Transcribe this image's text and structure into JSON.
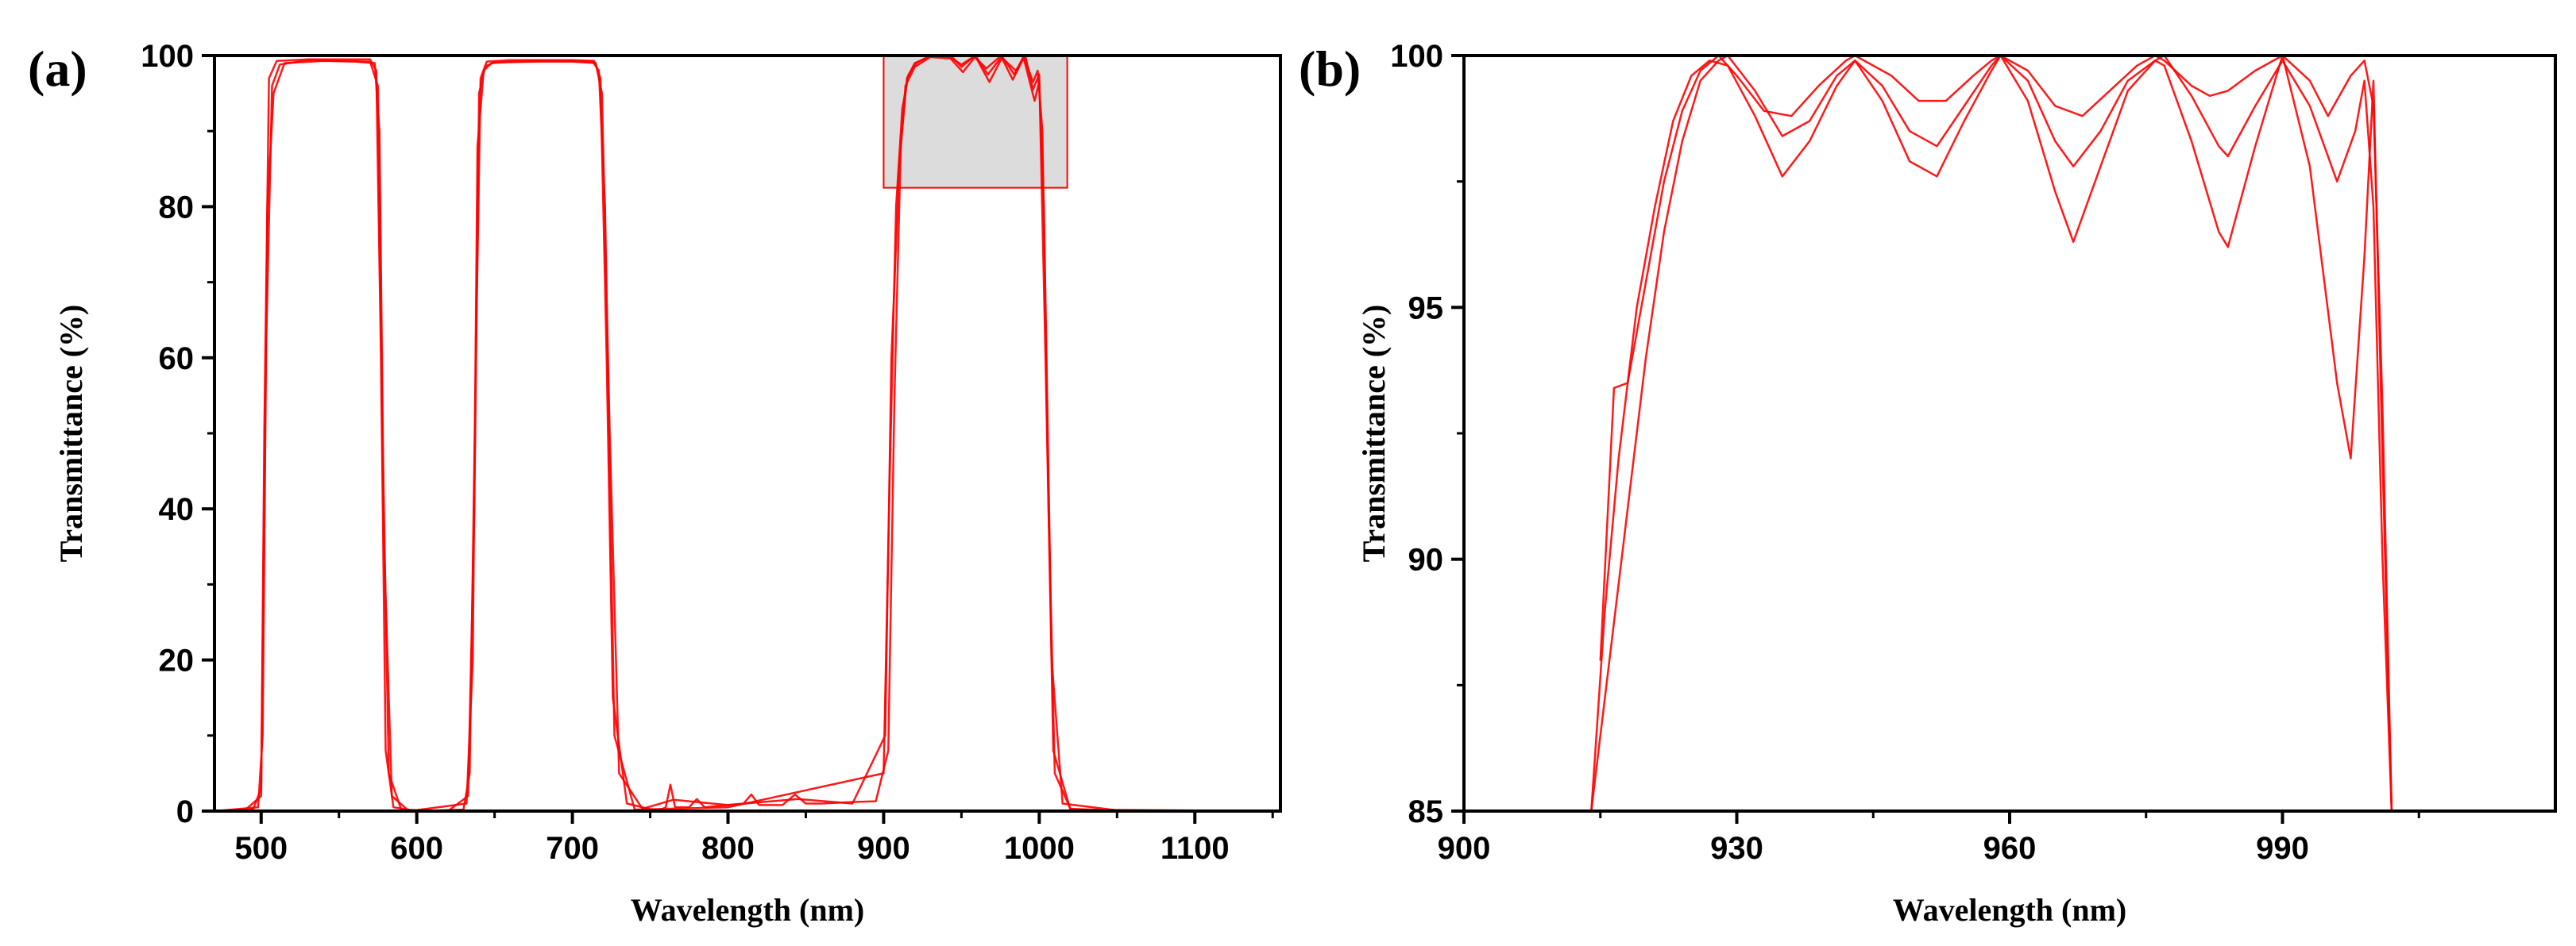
{
  "chart_data": [
    {
      "panel_label": "(a)",
      "type": "line",
      "xlabel": "Wavelength (nm)",
      "ylabel": "Transmittance (%)",
      "xlim": [
        470,
        1155
      ],
      "ylim": [
        0,
        100
      ],
      "x_ticks": [
        500,
        600,
        700,
        800,
        900,
        1000,
        1100
      ],
      "x_tick_labels": [
        "500",
        "600",
        "700",
        "800",
        "900",
        "1000",
        "1100"
      ],
      "y_ticks": [
        0,
        20,
        40,
        60,
        80,
        100
      ],
      "y_tick_labels": [
        "0",
        "20",
        "40",
        "60",
        "80",
        "100"
      ],
      "line_color": "#ff0000",
      "highlight_region": {
        "x": [
          900,
          1018
        ],
        "y": [
          82.5,
          100
        ],
        "fill": "#dcdcdc",
        "stroke": "#ff0000"
      },
      "series": [
        {
          "name": "s1",
          "x": [
            470,
            490,
            500,
            502,
            505,
            510,
            530,
            550,
            570,
            574,
            577,
            580,
            585,
            600,
            630,
            634,
            638,
            641,
            645,
            660,
            680,
            700,
            714,
            718,
            722,
            726,
            735,
            755,
            760,
            763,
            766,
            775,
            780,
            785,
            800,
            810,
            815,
            820,
            835,
            843,
            850,
            860,
            880,
            895,
            903,
            907,
            911,
            915,
            920,
            930,
            942,
            950,
            959,
            967,
            976,
            984,
            990,
            996,
            999,
            1002,
            1006,
            1010,
            1020,
            1060,
            1100,
            1155
          ],
          "y": [
            0,
            0.2,
            2,
            50,
            97,
            99.3,
            99.5,
            99.5,
            99.5,
            98,
            60,
            8,
            0.5,
            0,
            0.2,
            5,
            60,
            97,
            99.2,
            99.4,
            99.4,
            99.4,
            99.3,
            97,
            60,
            15,
            1,
            0,
            0.5,
            3.5,
            0.5,
            0.5,
            1.6,
            0.5,
            0.8,
            1,
            2.2,
            0.8,
            0.8,
            2.2,
            1,
            1,
            1.2,
            1.3,
            8,
            55,
            88,
            97,
            99,
            99.9,
            99.9,
            98.8,
            100,
            97.5,
            99.9,
            97.5,
            99.9,
            96.5,
            98,
            90,
            40,
            5,
            0.3,
            0,
            0,
            0
          ]
        },
        {
          "name": "s2",
          "x": [
            470,
            495,
            500,
            503,
            507,
            512,
            530,
            550,
            570,
            575,
            578,
            582,
            590,
            620,
            633,
            637,
            640,
            644,
            650,
            680,
            700,
            715,
            719,
            724,
            730,
            745,
            765,
            800,
            845,
            880,
            901,
            905,
            910,
            914,
            920,
            930,
            943,
            951,
            959,
            968,
            976,
            983,
            990,
            997,
            1000,
            1003,
            1008,
            1015,
            1050,
            1155
          ],
          "y": [
            0,
            0.3,
            3,
            60,
            96,
            98.8,
            99.4,
            99.3,
            99.2,
            96,
            50,
            5,
            0.2,
            0,
            2,
            40,
            95,
            98.6,
            99.1,
            99.2,
            99.2,
            99,
            95,
            50,
            5,
            0.3,
            1.5,
            0.8,
            1.6,
            1,
            10,
            60,
            85,
            96,
            98.5,
            99.8,
            99.6,
            97.8,
            99.9,
            96.5,
            99.7,
            96.8,
            99.7,
            94,
            96.5,
            80,
            20,
            1,
            0.1,
            0
          ]
        },
        {
          "name": "s3",
          "x": [
            470,
            498,
            501,
            504,
            508,
            515,
            540,
            560,
            573,
            576,
            579,
            584,
            595,
            632,
            636,
            639,
            643,
            648,
            670,
            690,
            713,
            717,
            721,
            727,
            740,
            800,
            900,
            904,
            908,
            912,
            916,
            921,
            929,
            944,
            950,
            958,
            966,
            975,
            985,
            991,
            996,
            1000,
            1004,
            1009,
            1020,
            1155
          ],
          "y": [
            0,
            0.5,
            10,
            80,
            95,
            99,
            99.3,
            99.2,
            99,
            90,
            35,
            2,
            0,
            1,
            20,
            88,
            98,
            99,
            99.3,
            99.3,
            99.2,
            98,
            80,
            10,
            0.2,
            0.5,
            5,
            45,
            80,
            93,
            97.5,
            99,
            99.9,
            99.8,
            98.5,
            99.9,
            98.3,
            99.9,
            98,
            100,
            95.5,
            97.5,
            60,
            8,
            0.2,
            0
          ]
        }
      ]
    },
    {
      "panel_label": "(b)",
      "type": "line",
      "xlabel": "Wavelength (nm)",
      "ylabel": "Transmittance (%)",
      "xlim": [
        900,
        1020
      ],
      "ylim": [
        85,
        100
      ],
      "x_ticks": [
        900,
        930,
        960,
        990
      ],
      "x_tick_labels": [
        "900",
        "930",
        "960",
        "990"
      ],
      "y_ticks": [
        85,
        90,
        95,
        100
      ],
      "y_tick_labels": [
        "85",
        "90",
        "95",
        "100"
      ],
      "line_color": "#ff0000",
      "series": [
        {
          "name": "b1",
          "x": [
            914,
            916,
            918,
            920,
            922,
            924,
            926,
            928,
            929,
            932,
            935,
            938,
            941,
            943,
            946,
            949,
            952,
            955,
            958,
            959,
            962,
            965,
            967,
            970,
            973,
            976,
            977,
            980,
            983,
            984,
            987,
            990,
            993,
            996,
            998,
            999,
            1000,
            1001,
            1002
          ],
          "y": [
            85,
            88,
            91,
            94,
            96.5,
            98.3,
            99.5,
            99.9,
            100,
            99.3,
            98.4,
            98.7,
            99.6,
            99.9,
            99.4,
            98.5,
            98.2,
            99,
            99.8,
            100,
            99.5,
            98.3,
            97.8,
            98.5,
            99.5,
            99.9,
            100,
            99.2,
            98.2,
            98,
            99,
            99.9,
            99,
            97.5,
            98.5,
            99.5,
            97,
            90,
            85
          ]
        },
        {
          "name": "b2",
          "x": [
            914,
            915.5,
            917,
            919,
            921,
            923,
            925,
            927,
            929,
            932,
            935,
            938,
            941,
            943,
            946,
            949,
            952,
            955,
            958,
            959,
            962,
            965,
            967,
            970,
            973,
            976,
            977,
            980,
            983,
            984,
            987,
            990,
            993,
            996,
            997.5,
            999,
            1000,
            1001,
            1002
          ],
          "y": [
            85,
            89,
            92,
            95,
            97,
            98.7,
            99.6,
            99.9,
            99.8,
            98.8,
            97.6,
            98.3,
            99.4,
            99.9,
            99.1,
            97.9,
            97.6,
            98.7,
            99.7,
            100,
            99.1,
            97.3,
            96.3,
            97.8,
            99.3,
            99.9,
            99.8,
            98.3,
            96.5,
            96.2,
            98.2,
            100,
            97.8,
            93.5,
            92,
            96,
            99.5,
            92,
            85
          ]
        },
        {
          "name": "b3",
          "x": [
            915,
            916.5,
            918,
            920,
            922,
            924,
            926,
            928,
            930,
            933,
            936,
            939,
            942,
            943,
            947,
            950,
            953,
            956,
            958,
            959,
            962,
            965,
            968,
            971,
            974,
            976,
            977,
            980,
            982,
            984,
            987,
            990,
            993,
            995,
            997.5,
            999,
            1000,
            1001,
            1002
          ],
          "y": [
            88,
            93.4,
            93.5,
            95.5,
            97.5,
            98.9,
            99.7,
            100,
            99.6,
            98.9,
            98.8,
            99.4,
            99.9,
            100,
            99.6,
            99.1,
            99.1,
            99.6,
            99.9,
            100,
            99.7,
            99,
            98.8,
            99.3,
            99.8,
            100,
            99.9,
            99.4,
            99.2,
            99.3,
            99.7,
            100,
            99.5,
            98.8,
            99.6,
            99.9,
            99,
            93,
            85
          ]
        }
      ]
    }
  ]
}
